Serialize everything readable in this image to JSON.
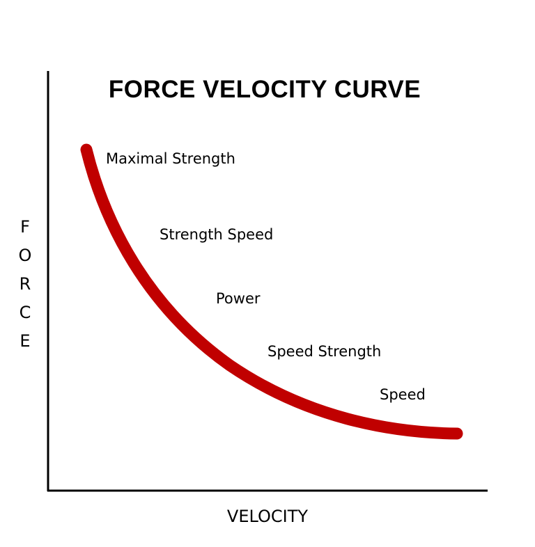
{
  "title": "FORCE VELOCITY CURVE",
  "axes": {
    "x_label": "VELOCITY",
    "y_label_letters": [
      "F",
      "O",
      "R",
      "C",
      "E"
    ]
  },
  "curve": {
    "color": "#c00000",
    "shape": "decreasing hyperbola"
  },
  "regions": [
    "Maximal Strength",
    "Strength Speed",
    "Power",
    "Speed Strength",
    "Speed"
  ]
}
